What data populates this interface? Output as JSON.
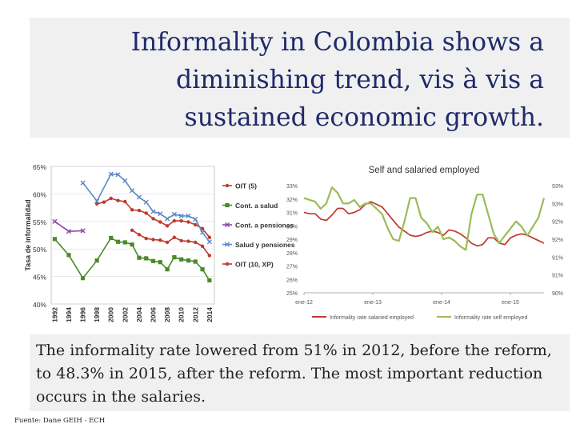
{
  "title_lines": [
    "Informality in Colombia shows a",
    "diminishing trend, vis à vis a",
    "sustained economic growth."
  ],
  "caption": "The informality rate lowered from 51% in 2012, before the reform, to 48.3% in 2015, after the reform. The most important reduction occurs in the salaries.",
  "source": "Fuente: Dane GEIH - ECH",
  "chart_data": [
    {
      "type": "line",
      "title": "",
      "ylabel": "Tasa de informalidad",
      "ylim": [
        40,
        65
      ],
      "yticks": [
        "40%",
        "45%",
        "50%",
        "55%",
        "60%",
        "65%"
      ],
      "x_tick_labels": [
        "1992",
        "1994",
        "1996",
        "1998",
        "2000",
        "2002",
        "2004",
        "2006",
        "2008",
        "2010",
        "2012",
        "2014"
      ],
      "legend_position": "right",
      "series": [
        {
          "name": "OIT (5)",
          "color": "#c0392b",
          "marker": "circle",
          "x": [
            1998,
            1999,
            2000,
            2001,
            2002,
            2003,
            2004,
            2005,
            2006,
            2007,
            2008,
            2009,
            2010,
            2011,
            2012,
            2013,
            2014
          ],
          "y": [
            58.2,
            58.5,
            59.2,
            58.8,
            58.6,
            57.1,
            57.0,
            56.5,
            55.5,
            54.9,
            54.2,
            55.1,
            55.1,
            54.9,
            54.4,
            53.7,
            52.1
          ]
        },
        {
          "name": "Cont. a salud",
          "color": "#4a8a2a",
          "marker": "square",
          "x": [
            1992,
            1994,
            1996,
            1998,
            2000,
            2001,
            2002,
            2003,
            2004,
            2005,
            2006,
            2007,
            2008,
            2009,
            2010,
            2011,
            2012,
            2013,
            2014
          ],
          "y": [
            51.8,
            48.9,
            44.7,
            47.9,
            52.0,
            51.3,
            51.2,
            50.8,
            48.4,
            48.3,
            47.8,
            47.6,
            46.3,
            48.5,
            48.1,
            47.9,
            47.7,
            46.3,
            44.3
          ]
        },
        {
          "name": "Cont. a pensiones",
          "color": "#8e44ad",
          "marker": "x",
          "x": [
            1992,
            1994,
            1996
          ],
          "y": [
            55.0,
            53.2,
            53.3
          ]
        },
        {
          "name": "Salud y pensiones",
          "color": "#5b8ac4",
          "marker": "x",
          "x": [
            1996,
            1998,
            2000,
            2001,
            2002,
            2003,
            2004,
            2005,
            2006,
            2007,
            2008,
            2009,
            2010,
            2011,
            2012,
            2013,
            2014
          ],
          "y": [
            62.0,
            58.7,
            63.6,
            63.5,
            62.4,
            60.6,
            59.4,
            58.5,
            56.8,
            56.4,
            55.5,
            56.3,
            56.0,
            56.0,
            55.4,
            53.0,
            51.3
          ]
        },
        {
          "name": "OIT (10, XP)",
          "color": "#c0392b",
          "marker": "circle",
          "x": [
            2003,
            2004,
            2005,
            2006,
            2007,
            2008,
            2009,
            2010,
            2011,
            2012,
            2013,
            2014
          ],
          "y": [
            53.4,
            52.6,
            51.9,
            51.7,
            51.6,
            51.2,
            52.1,
            51.5,
            51.4,
            51.2,
            50.5,
            48.8
          ]
        }
      ]
    },
    {
      "type": "line",
      "title": "Self and salaried employed",
      "x_tick_labels": [
        "ene-12",
        "ene-13",
        "ene-14",
        "ene-15"
      ],
      "y_left_ticks": [
        "25%",
        "26%",
        "27%",
        "28%",
        "29%",
        "30%",
        "31%",
        "32%",
        "33%"
      ],
      "y_right_ticks": [
        "90%",
        "91%",
        "91%",
        "92%",
        "92%",
        "93%",
        "93%"
      ],
      "y_left_range": [
        25,
        33
      ],
      "y_right_range": [
        90,
        93
      ],
      "legend_position": "bottom",
      "series": [
        {
          "name": "Informality rate salaried employed",
          "axis": "left",
          "color": "#c0392b",
          "values": [
            31.0,
            30.9,
            30.9,
            30.5,
            30.4,
            30.8,
            31.3,
            31.3,
            30.9,
            31.0,
            31.2,
            31.6,
            31.8,
            31.6,
            31.4,
            30.9,
            30.4,
            29.9,
            29.6,
            29.3,
            29.2,
            29.3,
            29.5,
            29.6,
            29.5,
            29.3,
            29.7,
            29.6,
            29.4,
            29.1,
            28.7,
            28.5,
            28.6,
            29.1,
            29.1,
            28.7,
            28.6,
            29.1,
            29.3,
            29.4,
            29.3,
            29.1,
            28.9,
            28.7
          ]
        },
        {
          "name": "Informality rate self employed",
          "axis": "right",
          "color": "#9bbb59",
          "values": [
            92.65,
            92.6,
            92.55,
            92.35,
            92.5,
            92.95,
            92.8,
            92.5,
            92.5,
            92.6,
            92.4,
            92.5,
            92.5,
            92.35,
            92.2,
            91.8,
            91.5,
            91.45,
            92.0,
            92.65,
            92.65,
            92.1,
            91.95,
            91.7,
            91.85,
            91.5,
            91.55,
            91.45,
            91.3,
            91.2,
            92.2,
            92.75,
            92.75,
            92.2,
            91.65,
            91.4,
            91.6,
            91.8,
            92.0,
            91.85,
            91.6,
            91.85,
            92.1,
            92.65
          ]
        }
      ]
    }
  ]
}
